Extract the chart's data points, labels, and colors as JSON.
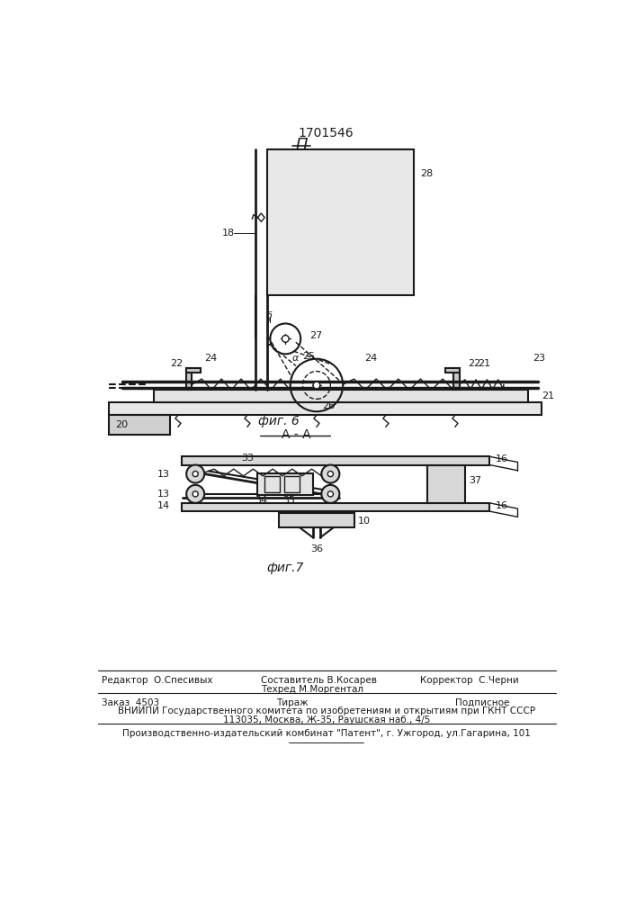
{
  "patent_number": "1701546",
  "fig6_label": "фиг. 6",
  "fig7_label": "фиг.7",
  "section_label": "A - A",
  "view_label": "Π",
  "bg_color": "#ffffff",
  "line_color": "#1a1a1a",
  "footer_line1_left": "Редактор  О.Спесивых",
  "footer_sestavitel": "Составитель В.Косарев",
  "footer_tekhred": "Техред М.Моргентал",
  "footer_korrektor": "Корректор  С.Черни",
  "footer_zakaz": "Заказ  4503",
  "footer_tirazh": "Тираж",
  "footer_podpisnoe": "Подписное",
  "footer_vniip1": "ВНИИПИ Государственного комитета по изобретениям и открытиям при ГКНТ СССР",
  "footer_vniip2": "113035, Москва, Ж-35, Раушская наб., 4/5",
  "footer_proizvod": "Производственно-издательский комбинат \"Патент\", г. Ужгород, ул.Гагарина, 101"
}
